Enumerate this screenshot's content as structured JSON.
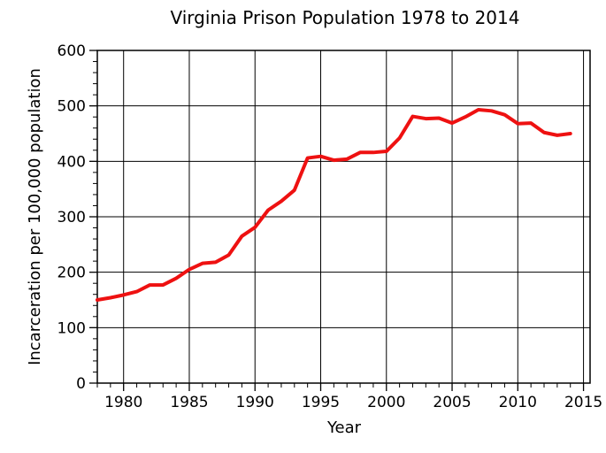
{
  "chart_data": {
    "type": "line",
    "title": "Virginia Prison Population 1978 to 2014",
    "xlabel": "Year",
    "ylabel": "Incarceration per 100,000 population",
    "xlim": [
      1978,
      2015.5
    ],
    "ylim": [
      0,
      600
    ],
    "x_ticks": [
      1980,
      1985,
      1990,
      1995,
      2000,
      2005,
      2010,
      2015
    ],
    "y_ticks": [
      0,
      100,
      200,
      300,
      400,
      500,
      600
    ],
    "grid": true,
    "line_color": "#ee1111",
    "series": [
      {
        "x": [
          1978,
          1979,
          1980,
          1981,
          1982,
          1983,
          1984,
          1985,
          1986,
          1987,
          1988,
          1989,
          1990,
          1991,
          1992,
          1993,
          1994,
          1995,
          1996,
          1997,
          1998,
          1999,
          2000,
          2001,
          2002,
          2003,
          2004,
          2005,
          2006,
          2007,
          2008,
          2009,
          2010,
          2011,
          2012,
          2013,
          2014
        ],
        "values": [
          150,
          154,
          159,
          165,
          177,
          177,
          189,
          205,
          216,
          218,
          231,
          265,
          281,
          312,
          328,
          348,
          406,
          409,
          402,
          404,
          416,
          416,
          418,
          442,
          481,
          477,
          478,
          469,
          480,
          493,
          491,
          484,
          468,
          469,
          452,
          447,
          450
        ]
      }
    ]
  }
}
